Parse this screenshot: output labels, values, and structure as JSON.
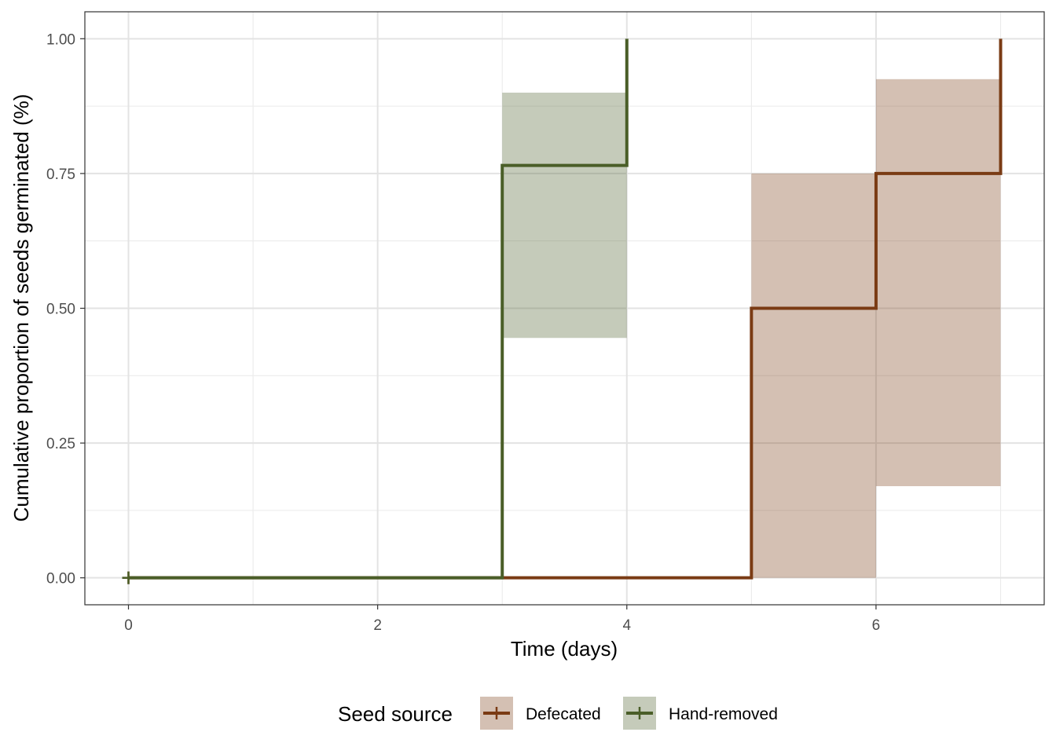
{
  "chart_data": {
    "type": "line",
    "subtype": "step",
    "title": "",
    "xlabel": "Time (days)",
    "ylabel": "Cumulative proportion of seeds germinated (%)",
    "xlim": [
      -0.35,
      7.35
    ],
    "ylim": [
      -0.05,
      1.05
    ],
    "x_ticks": [
      0,
      2,
      4,
      6
    ],
    "x_tick_labels": [
      "0",
      "2",
      "4",
      "6"
    ],
    "y_ticks": [
      0,
      0.25,
      0.5,
      0.75,
      1.0
    ],
    "y_tick_labels": [
      "0.00",
      "0.25",
      "0.50",
      "0.75",
      "1.00"
    ],
    "grid": true,
    "legend": {
      "title": "Seed source",
      "position": "bottom",
      "entries": [
        "Defecated",
        "Hand-removed"
      ]
    },
    "series": [
      {
        "name": "Defecated",
        "color": "#7a3b14",
        "fill_color": "#7a3b14",
        "steps": [
          {
            "x": 0,
            "y": 0
          },
          {
            "x": 5,
            "y": 0.5
          },
          {
            "x": 6,
            "y": 0.75
          },
          {
            "x": 7,
            "y": 1.0
          }
        ],
        "confidence_bands": [
          {
            "x0": 5,
            "x1": 6,
            "lower": 0.0,
            "upper": 0.75
          },
          {
            "x0": 6,
            "x1": 7,
            "lower": 0.17,
            "upper": 0.925
          }
        ],
        "censor_marks": [
          {
            "x": 0,
            "y": 0
          }
        ]
      },
      {
        "name": "Hand-removed",
        "color": "#4a5e28",
        "fill_color": "#4a5e28",
        "steps": [
          {
            "x": 0,
            "y": 0
          },
          {
            "x": 3,
            "y": 0.765
          },
          {
            "x": 4,
            "y": 1.0
          }
        ],
        "confidence_bands": [
          {
            "x0": 3,
            "x1": 4,
            "lower": 0.445,
            "upper": 0.9
          }
        ],
        "censor_marks": [
          {
            "x": 0,
            "y": 0
          }
        ]
      }
    ]
  }
}
